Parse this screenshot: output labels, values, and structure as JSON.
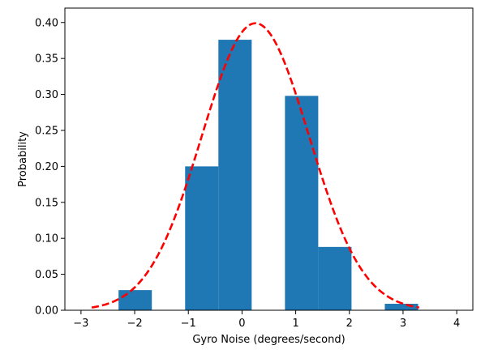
{
  "chart_data": {
    "type": "bar",
    "xlabel": "Gyro Noise (degrees/second)",
    "ylabel": "Probability",
    "xlim": [
      -3.3,
      4.3
    ],
    "ylim": [
      0,
      0.42
    ],
    "x_ticks": [
      -3,
      -2,
      -1,
      0,
      1,
      2,
      3,
      4
    ],
    "x_tick_labels": [
      "−3",
      "−2",
      "−1",
      "0",
      "1",
      "2",
      "3",
      "4"
    ],
    "y_ticks": [
      0.0,
      0.05,
      0.1,
      0.15,
      0.2,
      0.25,
      0.3,
      0.35,
      0.4
    ],
    "y_tick_labels": [
      "0.00",
      "0.05",
      "0.10",
      "0.15",
      "0.20",
      "0.25",
      "0.30",
      "0.35",
      "0.40"
    ],
    "bin_edges": [
      -2.3,
      -1.68,
      -1.06,
      -0.44,
      0.18,
      0.8,
      1.42,
      2.04,
      2.66,
      3.28
    ],
    "values": [
      0.028,
      0.0,
      0.2,
      0.376,
      0.0,
      0.298,
      0.088,
      0.0,
      0.009
    ],
    "bar_color": "#1f77b4",
    "curve": {
      "type": "normal-pdf",
      "mean": 0.25,
      "std": 1.0,
      "x_range": [
        -2.8,
        3.3
      ],
      "color": "#ff0000",
      "style": "dashed"
    },
    "grid": false
  }
}
